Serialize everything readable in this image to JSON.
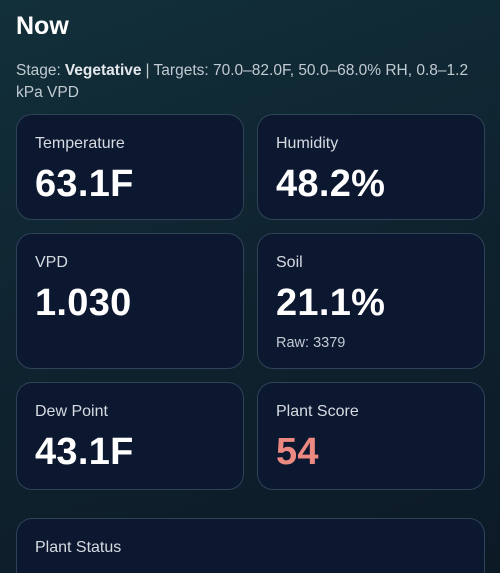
{
  "header": {
    "title": "Now",
    "stage_label": "Stage:",
    "stage": "Vegetative",
    "targets": "| Targets: 70.0–82.0F, 50.0–68.0% RH, 0.8–1.2 kPa VPD"
  },
  "cards": [
    {
      "label": "Temperature",
      "value": "63.1F"
    },
    {
      "label": "Humidity",
      "value": "48.2%"
    },
    {
      "label": "VPD",
      "value": "1.030"
    },
    {
      "label": "Soil",
      "value": "21.1%",
      "raw": "Raw: 3379"
    },
    {
      "label": "Dew Point",
      "value": "43.1F"
    },
    {
      "label": "Plant Score",
      "value": "54"
    }
  ],
  "plant_status": {
    "title": "Plant Status"
  }
}
